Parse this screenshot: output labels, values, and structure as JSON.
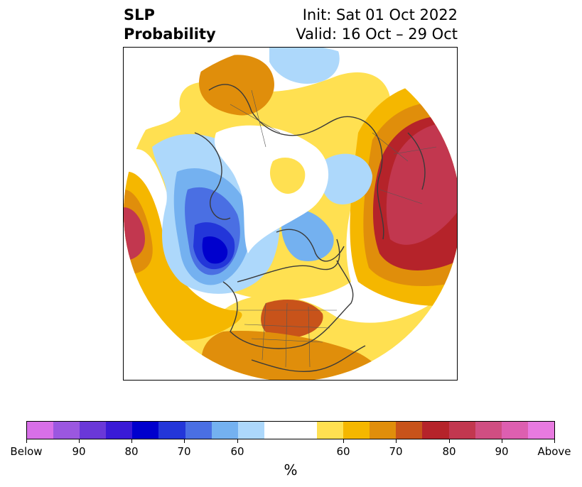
{
  "title": {
    "left_line1": "SLP",
    "left_line2": "Probability",
    "right_line1": "Init: Sat 01 Oct 2022",
    "right_line2": "Valid: 16 Oct – 29 Oct"
  },
  "map": {
    "projection": "north-polar-stereographic",
    "palette": {
      "below_60": "#add8fb",
      "below_70": "#74b1f0",
      "below_80": "#4a6fe3",
      "below_90": "#2336d9",
      "below_max": "#0000cd",
      "neutral": "#ffffff",
      "above_60": "#ffe051",
      "above_65": "#f5b700",
      "above_70": "#e08e0b",
      "above_75": "#c8531a",
      "above_80": "#b5232a",
      "above_85": "#c2374f"
    }
  },
  "colorbar": {
    "colors": [
      "#d86fe8",
      "#9b57e0",
      "#6a38d8",
      "#3a1ad6",
      "#0000cd",
      "#2336d9",
      "#4a6fe3",
      "#74b1f0",
      "#add8fb",
      "#ffffff",
      "#ffffff",
      "#ffe051",
      "#f5b700",
      "#e08e0b",
      "#c8531a",
      "#b5232a",
      "#c2374f",
      "#d04e82",
      "#dd5fb0",
      "#e87ae0"
    ],
    "ticks": [
      "Below",
      "90",
      "80",
      "70",
      "60",
      "60",
      "70",
      "80",
      "90",
      "Above"
    ],
    "unit": "%"
  }
}
